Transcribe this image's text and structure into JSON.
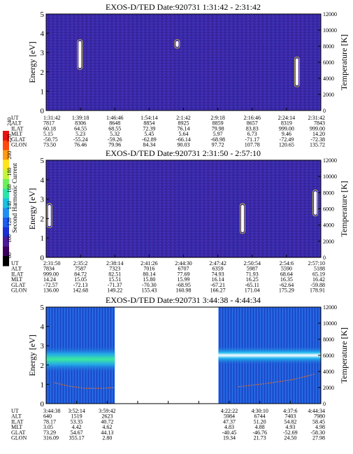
{
  "colorbar": {
    "label": "Second Harmonic Current",
    "ticks": [
      "240",
      "220",
      "200",
      "180",
      "160",
      "140",
      "120",
      "100",
      "80"
    ],
    "colors": [
      "#000000",
      "#3a0060",
      "#4b1a9a",
      "#1a2fd0",
      "#1c5cf0",
      "#1f8ff0",
      "#19c2e0",
      "#2ce3a8",
      "#6cf05a",
      "#c6f43a",
      "#ffe31a",
      "#ff9a14",
      "#ff4810",
      "#e81010"
    ]
  },
  "chart_data": [
    {
      "type": "heatmap",
      "title": "EXOS-D/TED    Date:920731  1:31:42 - 2:31:42",
      "ylabel": "Energy [eV]",
      "ylabel_right": "Temperature [K]",
      "ylim": [
        0,
        5
      ],
      "ylim_right": [
        0,
        12000
      ],
      "yticks": [
        "0",
        "1",
        "2",
        "3",
        "4",
        "5"
      ],
      "yticks_right": [
        "0",
        "2000",
        "4000",
        "6000",
        "8000",
        "10000",
        "12000"
      ],
      "data_gaps": [],
      "features": [
        {
          "type": "spike",
          "x_frac": 0.123,
          "e_low": 2.2,
          "e_high": 3.6
        },
        {
          "type": "spike",
          "x_frac": 0.477,
          "e_low": 3.3,
          "e_high": 3.6
        },
        {
          "type": "spike",
          "x_frac": 0.913,
          "e_low": 1.3,
          "e_high": 2.7
        }
      ],
      "row_labels": [
        "UT",
        "ALT",
        "ILAT",
        "MLT",
        "GLAT",
        "GLON"
      ],
      "columns": [
        [
          "1:31:42",
          "7817",
          "60.18",
          "5.15",
          "-50.75",
          "73.50"
        ],
        [
          "1:39:18",
          "8306",
          "64.55",
          "5.23",
          "-55.24",
          "76.46"
        ],
        [
          "1:46:46",
          "8648",
          "68.55",
          "5.32",
          "-59.26",
          "79.96"
        ],
        [
          "1:54:14",
          "8854",
          "72.39",
          "5.45",
          "-62.89",
          "84.34"
        ],
        [
          "2:1:42",
          "8925",
          "76.14",
          "5.64",
          "-66.14",
          "90.03"
        ],
        [
          "2:9:18",
          "8859",
          "79.98",
          "5.97",
          "-68.98",
          "97.72"
        ],
        [
          "2:16:46",
          "8657",
          "83.83",
          "6.73",
          "-71.17",
          "107.78"
        ],
        [
          "2:24:14",
          "8319",
          "999.00",
          "9.46",
          "-72.49",
          "120.65"
        ],
        [
          "2:31:42",
          "7843",
          "999.00",
          "14.20",
          "-72.38",
          "135.72"
        ]
      ]
    },
    {
      "type": "heatmap",
      "title": "EXOS-D/TED    Date:920731  2:31:50 - 2:57:10",
      "ylabel": "Energy [eV]",
      "ylabel_right": "Temperature [K]",
      "ylim": [
        0,
        5
      ],
      "ylim_right": [
        0,
        12000
      ],
      "yticks": [
        "0",
        "1",
        "2",
        "3",
        "4",
        "5"
      ],
      "yticks_right": [
        "0",
        "2000",
        "4000",
        "6000",
        "8000",
        "10000",
        "12000"
      ],
      "data_gaps": [],
      "features": [
        {
          "type": "spike",
          "x_frac": 0.012,
          "e_low": 1.6,
          "e_high": 2.7
        },
        {
          "type": "spike",
          "x_frac": 0.715,
          "e_low": 1.3,
          "e_high": 2.7
        },
        {
          "type": "spike",
          "x_frac": 0.98,
          "e_low": 2.2,
          "e_high": 3.4
        }
      ],
      "row_labels": [
        "UT",
        "ALT",
        "ILAT",
        "MLT",
        "GLAT",
        "GLON"
      ],
      "columns": [
        [
          "2:31:50",
          "7834",
          "999.00",
          "14.24",
          "-72.57",
          "136.00"
        ],
        [
          "2:35:2",
          "7587",
          "84.72",
          "15.05",
          "-72.13",
          "142.68"
        ],
        [
          "2:38:14",
          "7323",
          "82.51",
          "15.51",
          "-71.37",
          "149.22"
        ],
        [
          "2:41:26",
          "7016",
          "80.14",
          "15.80",
          "-70.30",
          "155.43"
        ],
        [
          "2:44:30",
          "6707",
          "77.69",
          "15.99",
          "-68.95",
          "160.98"
        ],
        [
          "2:47:42",
          "6359",
          "74.93",
          "16.14",
          "-67.21",
          "166.27"
        ],
        [
          "2:50:54",
          "5987",
          "71.93",
          "16.25",
          "-65.11",
          "171.04"
        ],
        [
          "2:54:6",
          "5590",
          "68.64",
          "16.35",
          "-62.64",
          "175.29"
        ],
        [
          "2:57:10",
          "5188",
          "65.19",
          "16.42",
          "-59.88",
          "178.91"
        ]
      ]
    },
    {
      "type": "heatmap",
      "title": "EXOS-D/TED    Date:920731  3:44:38 - 4:44:34",
      "ylabel": "Energy [eV]",
      "ylabel_right": "Temperature [K]",
      "ylim": [
        0,
        5
      ],
      "ylim_right": [
        0,
        12000
      ],
      "yticks": [
        "0",
        "1",
        "2",
        "3",
        "4",
        "5"
      ],
      "yticks_right": [
        "0",
        "2000",
        "4000",
        "6000",
        "8000",
        "10000",
        "12000"
      ],
      "data_gaps": [
        [
          0.25,
          0.627
        ]
      ],
      "features": [
        {
          "type": "band",
          "x_from": 0.0,
          "x_to": 0.25,
          "e_center": 2.3,
          "width": 0.7
        },
        {
          "type": "band",
          "x_from": 0.627,
          "x_to": 1.0,
          "e_center": 2.5,
          "width": 0.5
        }
      ],
      "temperature_trace": [
        {
          "x_frac": 0.03,
          "k": 2600
        },
        {
          "x_frac": 0.08,
          "k": 2200
        },
        {
          "x_frac": 0.14,
          "k": 1900
        },
        {
          "x_frac": 0.2,
          "k": 1900
        },
        {
          "x_frac": 0.25,
          "k": 2000
        },
        {
          "x_frac": 0.7,
          "k": 2100
        },
        {
          "x_frac": 0.8,
          "k": 2500
        },
        {
          "x_frac": 0.9,
          "k": 3000
        },
        {
          "x_frac": 0.98,
          "k": 3700
        }
      ],
      "row_labels": [
        "UT",
        "ALT",
        "ILAT",
        "MLT",
        "GLAT",
        "GLON"
      ],
      "columns": [
        [
          "3:44:38",
          "640",
          "78.17",
          "3.05",
          "73.29",
          "316.09"
        ],
        [
          "3:52:14",
          "1519",
          "53.35",
          "4.42",
          "54.67",
          "355.17"
        ],
        [
          "3:59:42",
          "2623",
          "40.72",
          "4.62",
          "44.13",
          "2.80"
        ],
        null,
        null,
        null,
        [
          "4:22:22",
          "5984",
          "47.37",
          "4.83",
          "-40.45",
          "19.34"
        ],
        [
          "4:30:10",
          "6744",
          "51.20",
          "4.88",
          "-46.76",
          "21.73"
        ],
        [
          "4:37:6",
          "7403",
          "54.82",
          "4.93",
          "-52.69",
          "24.50"
        ],
        [
          "4:44:34",
          "7980",
          "58.45",
          "4.98",
          "-58.30",
          "27.98"
        ]
      ]
    }
  ]
}
